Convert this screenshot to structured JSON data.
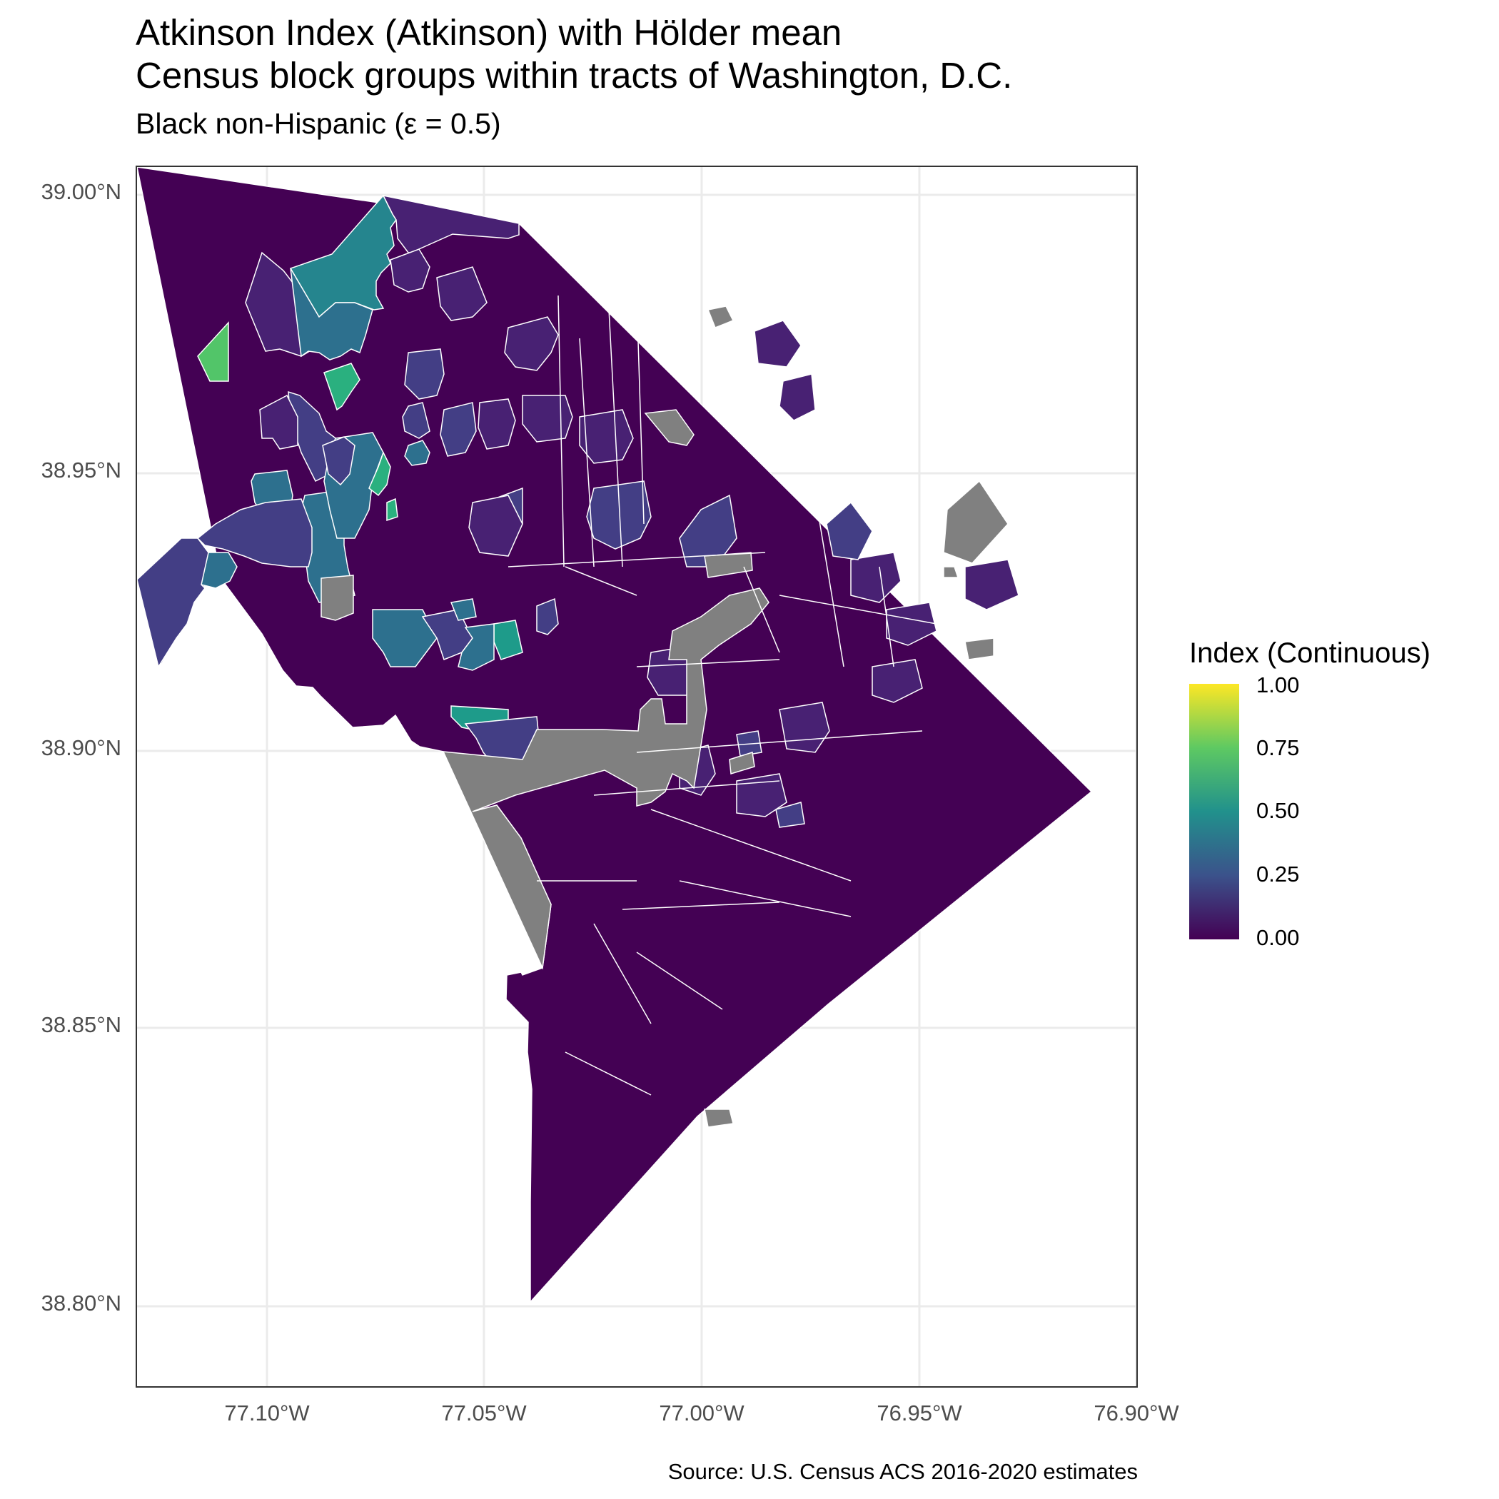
{
  "title_line1": "Atkinson Index (Atkinson) with Hölder mean",
  "title_line2": "Census block groups within tracts of Washington, D.C.",
  "subtitle": "Black non-Hispanic (ε = 0.5)",
  "caption": "Source: U.S. Census ACS 2016-2020 estimates",
  "y_axis": {
    "ticks": [
      "39.00°N",
      "38.95°N",
      "38.90°N",
      "38.85°N",
      "38.80°N"
    ]
  },
  "x_axis": {
    "ticks": [
      "77.10°W",
      "77.05°W",
      "77.00°W",
      "76.95°W",
      "76.90°W"
    ]
  },
  "legend": {
    "title": "Index (Continuous)",
    "ticks": [
      "1.00",
      "0.75",
      "0.50",
      "0.25",
      "0.00"
    ],
    "palette": "viridis",
    "na_color": "#808080"
  },
  "map": {
    "region": "Washington, D.C.",
    "unit": "Census block groups within tracts",
    "grid": true,
    "colors": {
      "na": "#808080",
      "v0": "#440154",
      "v0_1": "#482173",
      "v0_2": "#433e85",
      "v0_3": "#2d708e",
      "v0_4": "#25858e",
      "v0_5": "#1e9b8a",
      "v0_6": "#2ab07f",
      "v0_7": "#52c569"
    }
  }
}
